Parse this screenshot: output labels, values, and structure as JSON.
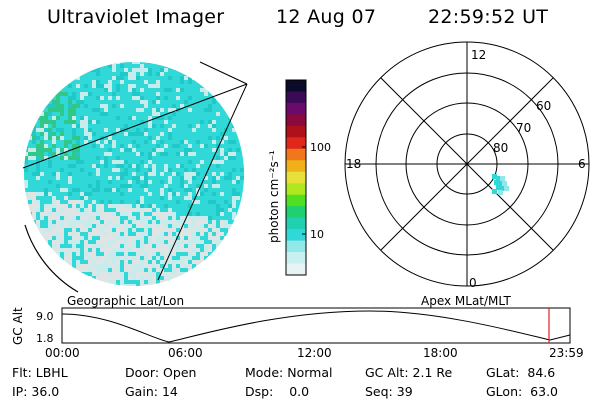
{
  "header": {
    "instrument": "Ultraviolet Imager",
    "date": "12 Aug 07",
    "time": "22:59:52 UT"
  },
  "colorbar": {
    "unit_label": "photon cm⁻²s⁻¹",
    "ticks": [
      "100",
      "10"
    ],
    "colors": [
      "#0a0a2a",
      "#3a0a55",
      "#6a0a6a",
      "#8a0a40",
      "#b0101a",
      "#e0281a",
      "#f0781a",
      "#f0b01a",
      "#e8e03a",
      "#b0e820",
      "#50e020",
      "#20d070",
      "#20d0b0",
      "#30d8d8",
      "#90e8e8",
      "#c8f0f0",
      "#e8f4f4"
    ]
  },
  "left_map": {
    "caption": "Geographic Lat/Lon",
    "colors": {
      "cyan": "#30d8d8",
      "green": "#30c888",
      "pale": "#c8ecec",
      "gray": "#e0e4e4"
    }
  },
  "polar_plot": {
    "caption": "Apex MLat/MLT",
    "mlt_labels": [
      "12",
      "18",
      "6",
      "0"
    ],
    "lat_labels": [
      "60",
      "70",
      "80"
    ]
  },
  "timeline": {
    "axis_title": "GC Alt",
    "y_ticks": [
      "9.0",
      "1.8"
    ],
    "x_ticks": [
      "00:00",
      "06:00",
      "12:00",
      "18:00",
      "23:59"
    ],
    "marker_color": "#e02020"
  },
  "info": {
    "flt_label": "Flt:",
    "flt_value": "LBHL",
    "ip_label": "IP:",
    "ip_value": "36.0",
    "door_label": "Door:",
    "door_value": "Open",
    "gain_label": "Gain:",
    "gain_value": "14",
    "mode_label": "Mode:",
    "mode_value": "Normal",
    "dsp_label": "Dsp:",
    "dsp_value": "0.0",
    "gcalt_label": "GC Alt:",
    "gcalt_value": "2.1 Re",
    "seq_label": "Seq:",
    "seq_value": "39",
    "glat_label": "GLat:",
    "glat_value": "84.6",
    "glon_label": "GLon:",
    "glon_value": "63.0"
  }
}
